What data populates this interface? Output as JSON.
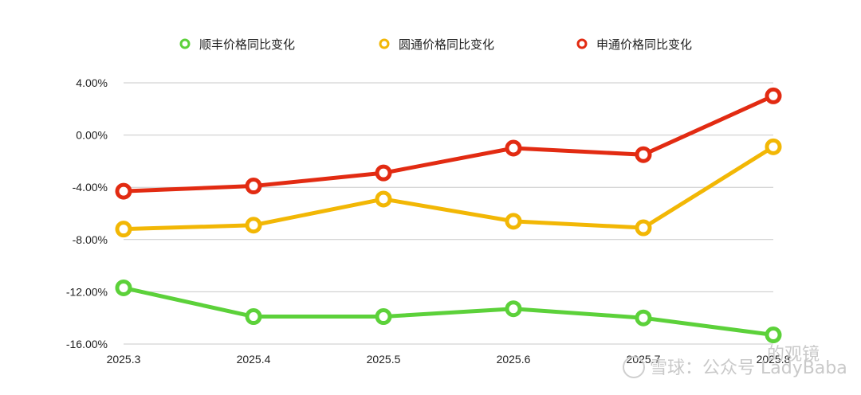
{
  "chart_data": {
    "type": "line",
    "categories": [
      "2025.3",
      "2025.4",
      "2025.5",
      "2025.6",
      "2025.7",
      "2025.8"
    ],
    "series": [
      {
        "name": "顺丰价格同比变化",
        "color": "#5cd13a",
        "values": [
          -11.7,
          -13.9,
          -13.9,
          -13.3,
          -14.0,
          -15.3
        ]
      },
      {
        "name": "圆通价格同比变化",
        "color": "#f2b705",
        "values": [
          -7.2,
          -6.9,
          -4.9,
          -6.6,
          -7.1,
          -0.9
        ]
      },
      {
        "name": "申通价格同比变化",
        "color": "#e22b12",
        "values": [
          -4.3,
          -3.9,
          -2.9,
          -1.0,
          -1.5,
          3.0
        ]
      }
    ],
    "yticks": [
      "4.00%",
      "0.00%",
      "-4.00%",
      "-8.00%",
      "-12.00%",
      "-16.00%"
    ],
    "ylim": [
      -16,
      4
    ],
    "grid": true,
    "legend": "top-center"
  },
  "watermark": {
    "text": "雪球：公众号 LadyBaba",
    "suffix": "的观镜"
  }
}
